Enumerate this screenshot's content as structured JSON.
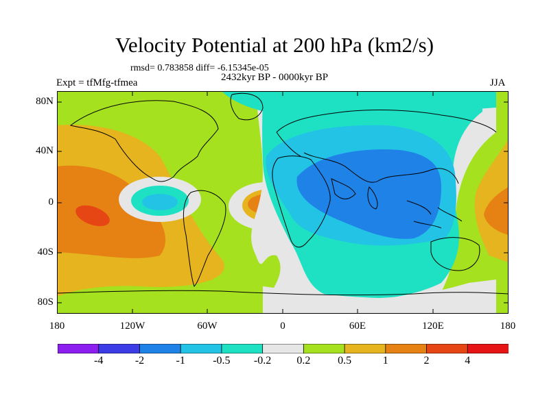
{
  "title": "Velocity Potential at 200 hPa (km2/s)",
  "stats_line": "rmsd= 0.783858 diff= -6.15345e-05",
  "period": "2432kyr BP - 0000kyr BP",
  "experiment": "Expt = tfMfg-tfmea",
  "season": "JJA",
  "map": {
    "y_ticks": [
      "80N",
      "40N",
      "0",
      "40S",
      "80S"
    ],
    "x_ticks": [
      "180",
      "120W",
      "60W",
      "0",
      "60E",
      "120E",
      "180"
    ]
  },
  "colorbar": {
    "labels": [
      "-4",
      "-2",
      "-1",
      "-0.5",
      "-0.2",
      "0.2",
      "0.5",
      "1",
      "2",
      "4"
    ],
    "colors": [
      "#8c1ff0",
      "#3c3ce6",
      "#1e82e6",
      "#23c3e6",
      "#1ee1c3",
      "#e6e6e6",
      "#a5e11e",
      "#e6b41e",
      "#e68214",
      "#e64614",
      "#e61414"
    ]
  },
  "colors": {
    "background": "#ffffff",
    "coastline": "#000000",
    "band_neutral": "#e6e6e6",
    "band_pos_0_2": "#a5e11e",
    "band_pos_0_5": "#e6b41e",
    "band_pos_1": "#e68214",
    "band_pos_2": "#e64614",
    "band_neg_0_2": "#1ee1c3",
    "band_neg_0_5": "#23c3e6",
    "band_neg_1": "#1e82e6"
  }
}
